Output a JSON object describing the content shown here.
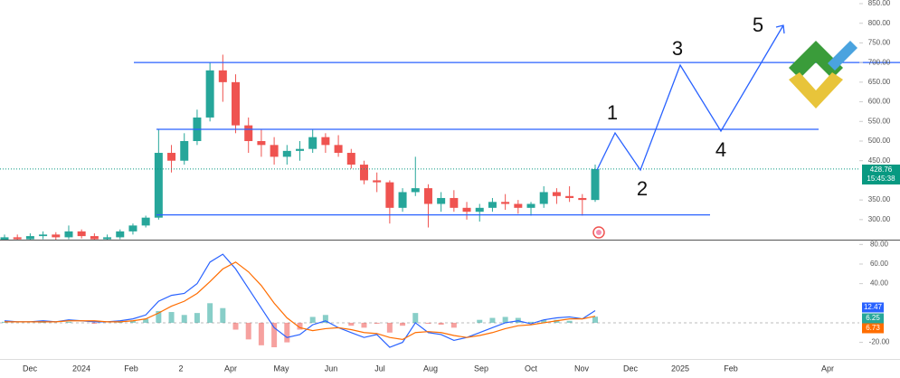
{
  "chart_data": {
    "type": "candlestick",
    "categories": [
      null,
      null,
      null,
      null,
      null,
      null,
      null,
      null,
      null,
      null,
      null,
      null,
      null,
      null,
      null,
      null,
      null,
      null,
      null,
      null,
      null,
      null,
      null,
      null,
      null,
      null,
      null,
      null,
      null,
      null,
      null,
      null,
      null,
      null,
      null,
      null,
      null,
      null,
      null,
      null,
      null,
      null,
      null,
      null,
      null,
      null,
      null
    ],
    "open": [
      245,
      255,
      250,
      258,
      262,
      255,
      270,
      258,
      250,
      255,
      270,
      285,
      305,
      470,
      450,
      500,
      560,
      680,
      650,
      540,
      500,
      490,
      460,
      475,
      480,
      510,
      490,
      470,
      440,
      400,
      395,
      330,
      370,
      380,
      340,
      355,
      330,
      320,
      330,
      345,
      340,
      330,
      340,
      370,
      360,
      355,
      350
    ],
    "high": [
      262,
      262,
      265,
      270,
      268,
      285,
      275,
      265,
      262,
      275,
      290,
      310,
      530,
      490,
      520,
      580,
      700,
      720,
      670,
      560,
      530,
      510,
      490,
      500,
      530,
      520,
      515,
      480,
      450,
      420,
      400,
      380,
      460,
      390,
      370,
      375,
      345,
      340,
      355,
      365,
      350,
      345,
      385,
      380,
      385,
      365,
      440
    ],
    "low": [
      240,
      245,
      242,
      250,
      248,
      250,
      252,
      245,
      240,
      250,
      262,
      280,
      300,
      420,
      440,
      490,
      550,
      600,
      520,
      470,
      460,
      440,
      440,
      450,
      470,
      470,
      460,
      430,
      390,
      370,
      290,
      320,
      360,
      280,
      320,
      320,
      300,
      295,
      320,
      325,
      315,
      310,
      330,
      340,
      345,
      310,
      345
    ],
    "close": [
      255,
      250,
      258,
      262,
      255,
      270,
      258,
      250,
      255,
      270,
      285,
      305,
      470,
      450,
      500,
      560,
      680,
      650,
      540,
      500,
      490,
      460,
      475,
      480,
      510,
      490,
      470,
      440,
      400,
      395,
      330,
      370,
      380,
      340,
      355,
      330,
      320,
      330,
      345,
      340,
      330,
      340,
      370,
      360,
      355,
      350,
      428.76
    ],
    "up_color": "#26a69a",
    "down_color": "#ef5350",
    "ylim": [
      249,
      850
    ],
    "yticks": [
      {
        "value": 850,
        "label": "850.00"
      },
      {
        "value": 800,
        "label": "800.00"
      },
      {
        "value": 750,
        "label": "750.00"
      },
      {
        "value": 700,
        "label": "700.00"
      },
      {
        "value": 650,
        "label": "650.00"
      },
      {
        "value": 600,
        "label": "600.00"
      },
      {
        "value": 550,
        "label": "550.00"
      },
      {
        "value": 500,
        "label": "500.00"
      },
      {
        "value": 450,
        "label": "450.00"
      },
      {
        "value": 350,
        "label": "350.00"
      },
      {
        "value": 300,
        "label": "300.00"
      }
    ],
    "countdown": "15:45:38",
    "levels": [
      700,
      530,
      312
    ],
    "level_color": "#2962ff",
    "wave_labels": [
      "1",
      "2",
      "3",
      "4",
      "5"
    ],
    "time_labels": [
      "Dec",
      "2024",
      "Feb",
      "2",
      "Apr",
      "May",
      "Jun",
      "Jul",
      "Aug",
      "Sep",
      "Oct",
      "Nov",
      "Dec",
      "2025",
      "Feb",
      "Apr"
    ],
    "macd": {
      "ylim": [
        -37,
        84
      ],
      "yticks": [
        {
          "value": 80,
          "label": "80.00"
        },
        {
          "value": 60,
          "label": "60.00"
        },
        {
          "value": 40,
          "label": "40.00"
        },
        {
          "value": -20,
          "label": "-20.00"
        }
      ],
      "series": [
        {
          "color": "#2962ff",
          "values": [
            2,
            1,
            1,
            2,
            1,
            3,
            2,
            1,
            1,
            2,
            4,
            8,
            22,
            28,
            30,
            40,
            62,
            70,
            55,
            35,
            15,
            -5,
            -15,
            -12,
            -2,
            2,
            -5,
            -10,
            -15,
            -12,
            -25,
            -20,
            0,
            -10,
            -12,
            -18,
            -15,
            -10,
            -5,
            0,
            2,
            -1,
            3,
            5,
            6,
            4,
            12.47
          ]
        },
        {
          "color": "#ff6d00",
          "values": [
            1,
            1,
            1,
            1,
            1,
            2,
            2,
            2,
            1,
            1,
            2,
            4,
            10,
            17,
            22,
            30,
            42,
            55,
            62,
            52,
            38,
            20,
            5,
            -5,
            -8,
            -6,
            -5,
            -7,
            -10,
            -11,
            -15,
            -17,
            -10,
            -9,
            -10,
            -13,
            -15,
            -13,
            -10,
            -6,
            -3,
            -2,
            0,
            2,
            4,
            4,
            6.73
          ]
        },
        {
          "color": "#26a69a",
          "values": [
            1,
            0,
            0,
            1,
            0,
            1,
            0,
            -1,
            0,
            1,
            2,
            4,
            12,
            11,
            8,
            10,
            20,
            15,
            -7,
            -17,
            -23,
            -25,
            -20,
            -7,
            6,
            8,
            0,
            -3,
            -5,
            -1,
            -10,
            -3,
            10,
            -1,
            -2,
            -5,
            0,
            3,
            5,
            6,
            5,
            1,
            3,
            3,
            2,
            0,
            6.25
          ]
        }
      ]
    }
  }
}
